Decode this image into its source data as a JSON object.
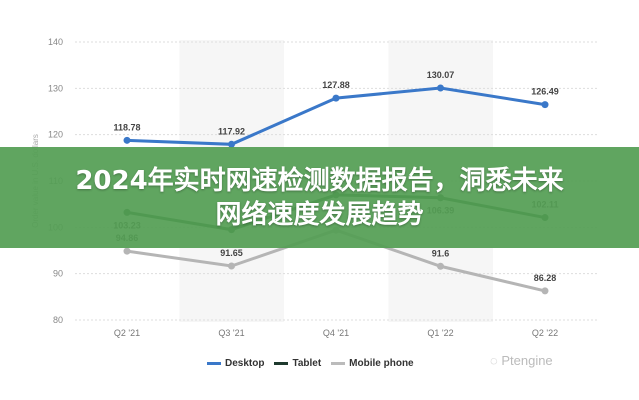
{
  "banner": {
    "line1": "2024年实时网速检测数据报告，洞悉未来",
    "line2": "网络速度发展趋势"
  },
  "watermark": "Ptengine",
  "chart_data": {
    "type": "line",
    "categories": [
      "Q2 '21",
      "Q3 '21",
      "Q4 '21",
      "Q1 '22",
      "Q2 '22"
    ],
    "ylabel": "Order value in U.S. dollars",
    "ylim": [
      80,
      140
    ],
    "yticks": [
      80,
      90,
      100,
      110,
      120,
      130,
      140
    ],
    "grid": true,
    "legend_position": "bottom",
    "series": [
      {
        "name": "Desktop",
        "color": "#3a78c9",
        "values": [
          118.78,
          117.92,
          127.88,
          130.07,
          126.49
        ],
        "labels": [
          "118.78",
          "117.92",
          "127.88",
          "130.07",
          "126.49"
        ]
      },
      {
        "name": "Tablet",
        "color": "#1e5a2e",
        "values": [
          103.23,
          99.5,
          107,
          106.39,
          102.11
        ],
        "labels": [
          "103.23",
          "",
          "",
          "106.39",
          "102.11"
        ]
      },
      {
        "name": "Mobile phone",
        "color": "#b5b5b5",
        "values": [
          94.86,
          91.65,
          99.4,
          91.6,
          86.28
        ],
        "labels": [
          "94.86",
          "91.65",
          "",
          "91.6",
          "86.28"
        ]
      }
    ]
  }
}
